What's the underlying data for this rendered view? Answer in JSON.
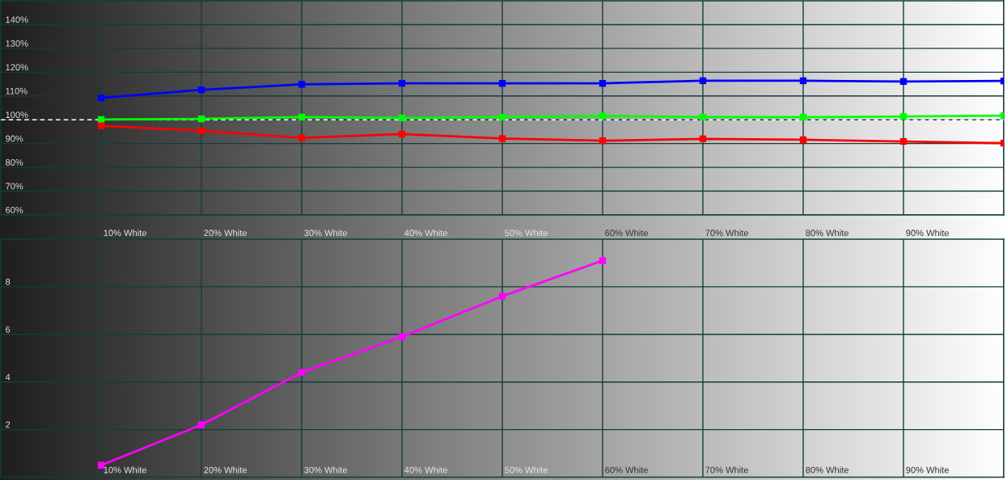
{
  "chart_data": [
    {
      "type": "line",
      "categories": [
        "10% White",
        "20% White",
        "30% White",
        "40% White",
        "50% White",
        "60% White",
        "70% White",
        "80% White",
        "90% White",
        null
      ],
      "series": [
        {
          "color": "#0000ff",
          "values": [
            109.2,
            112.6,
            114.9,
            115.3,
            115.3,
            115.3,
            116.4,
            116.4,
            116.1,
            116.3
          ]
        },
        {
          "color": "#00ff00",
          "values": [
            100.1,
            100.4,
            101.1,
            100.8,
            101.1,
            101.6,
            101.1,
            101.1,
            101.4,
            101.7
          ]
        },
        {
          "color": "#ff0000",
          "values": [
            97.5,
            95.4,
            92.4,
            94.0,
            92.1,
            91.2,
            92.0,
            91.6,
            90.9,
            90.2
          ]
        }
      ],
      "ylim": [
        60,
        150
      ],
      "yticks": [
        {
          "value": 60,
          "label": "60%"
        },
        {
          "value": 70,
          "label": "70%"
        },
        {
          "value": 80,
          "label": "80%"
        },
        {
          "value": 90,
          "label": "90%"
        },
        {
          "value": 100,
          "label": "100%"
        },
        {
          "value": 110,
          "label": "110%"
        },
        {
          "value": 120,
          "label": "120%"
        },
        {
          "value": 130,
          "label": "130%"
        },
        {
          "value": 140,
          "label": "140%"
        }
      ],
      "ref_lines": [
        {
          "axis": "y",
          "value": 100,
          "color": "#ffffff",
          "line_style": "dashed"
        }
      ],
      "grid": true,
      "marker": "square",
      "line_style": "solid"
    },
    {
      "type": "line",
      "categories": [
        "10% White",
        "20% White",
        "30% White",
        "40% White",
        "50% White",
        "60% White",
        "70% White",
        "80% White",
        "90% White",
        null
      ],
      "series": [
        {
          "color": "#ff00ff",
          "values": [
            0.5,
            2.2,
            4.4,
            5.9,
            7.6,
            9.1,
            null,
            null,
            null,
            null
          ]
        }
      ],
      "ylim": [
        0,
        10
      ],
      "yticks": [
        2,
        4,
        6,
        8
      ],
      "grid": true,
      "marker": "square",
      "line_style": "solid"
    }
  ]
}
